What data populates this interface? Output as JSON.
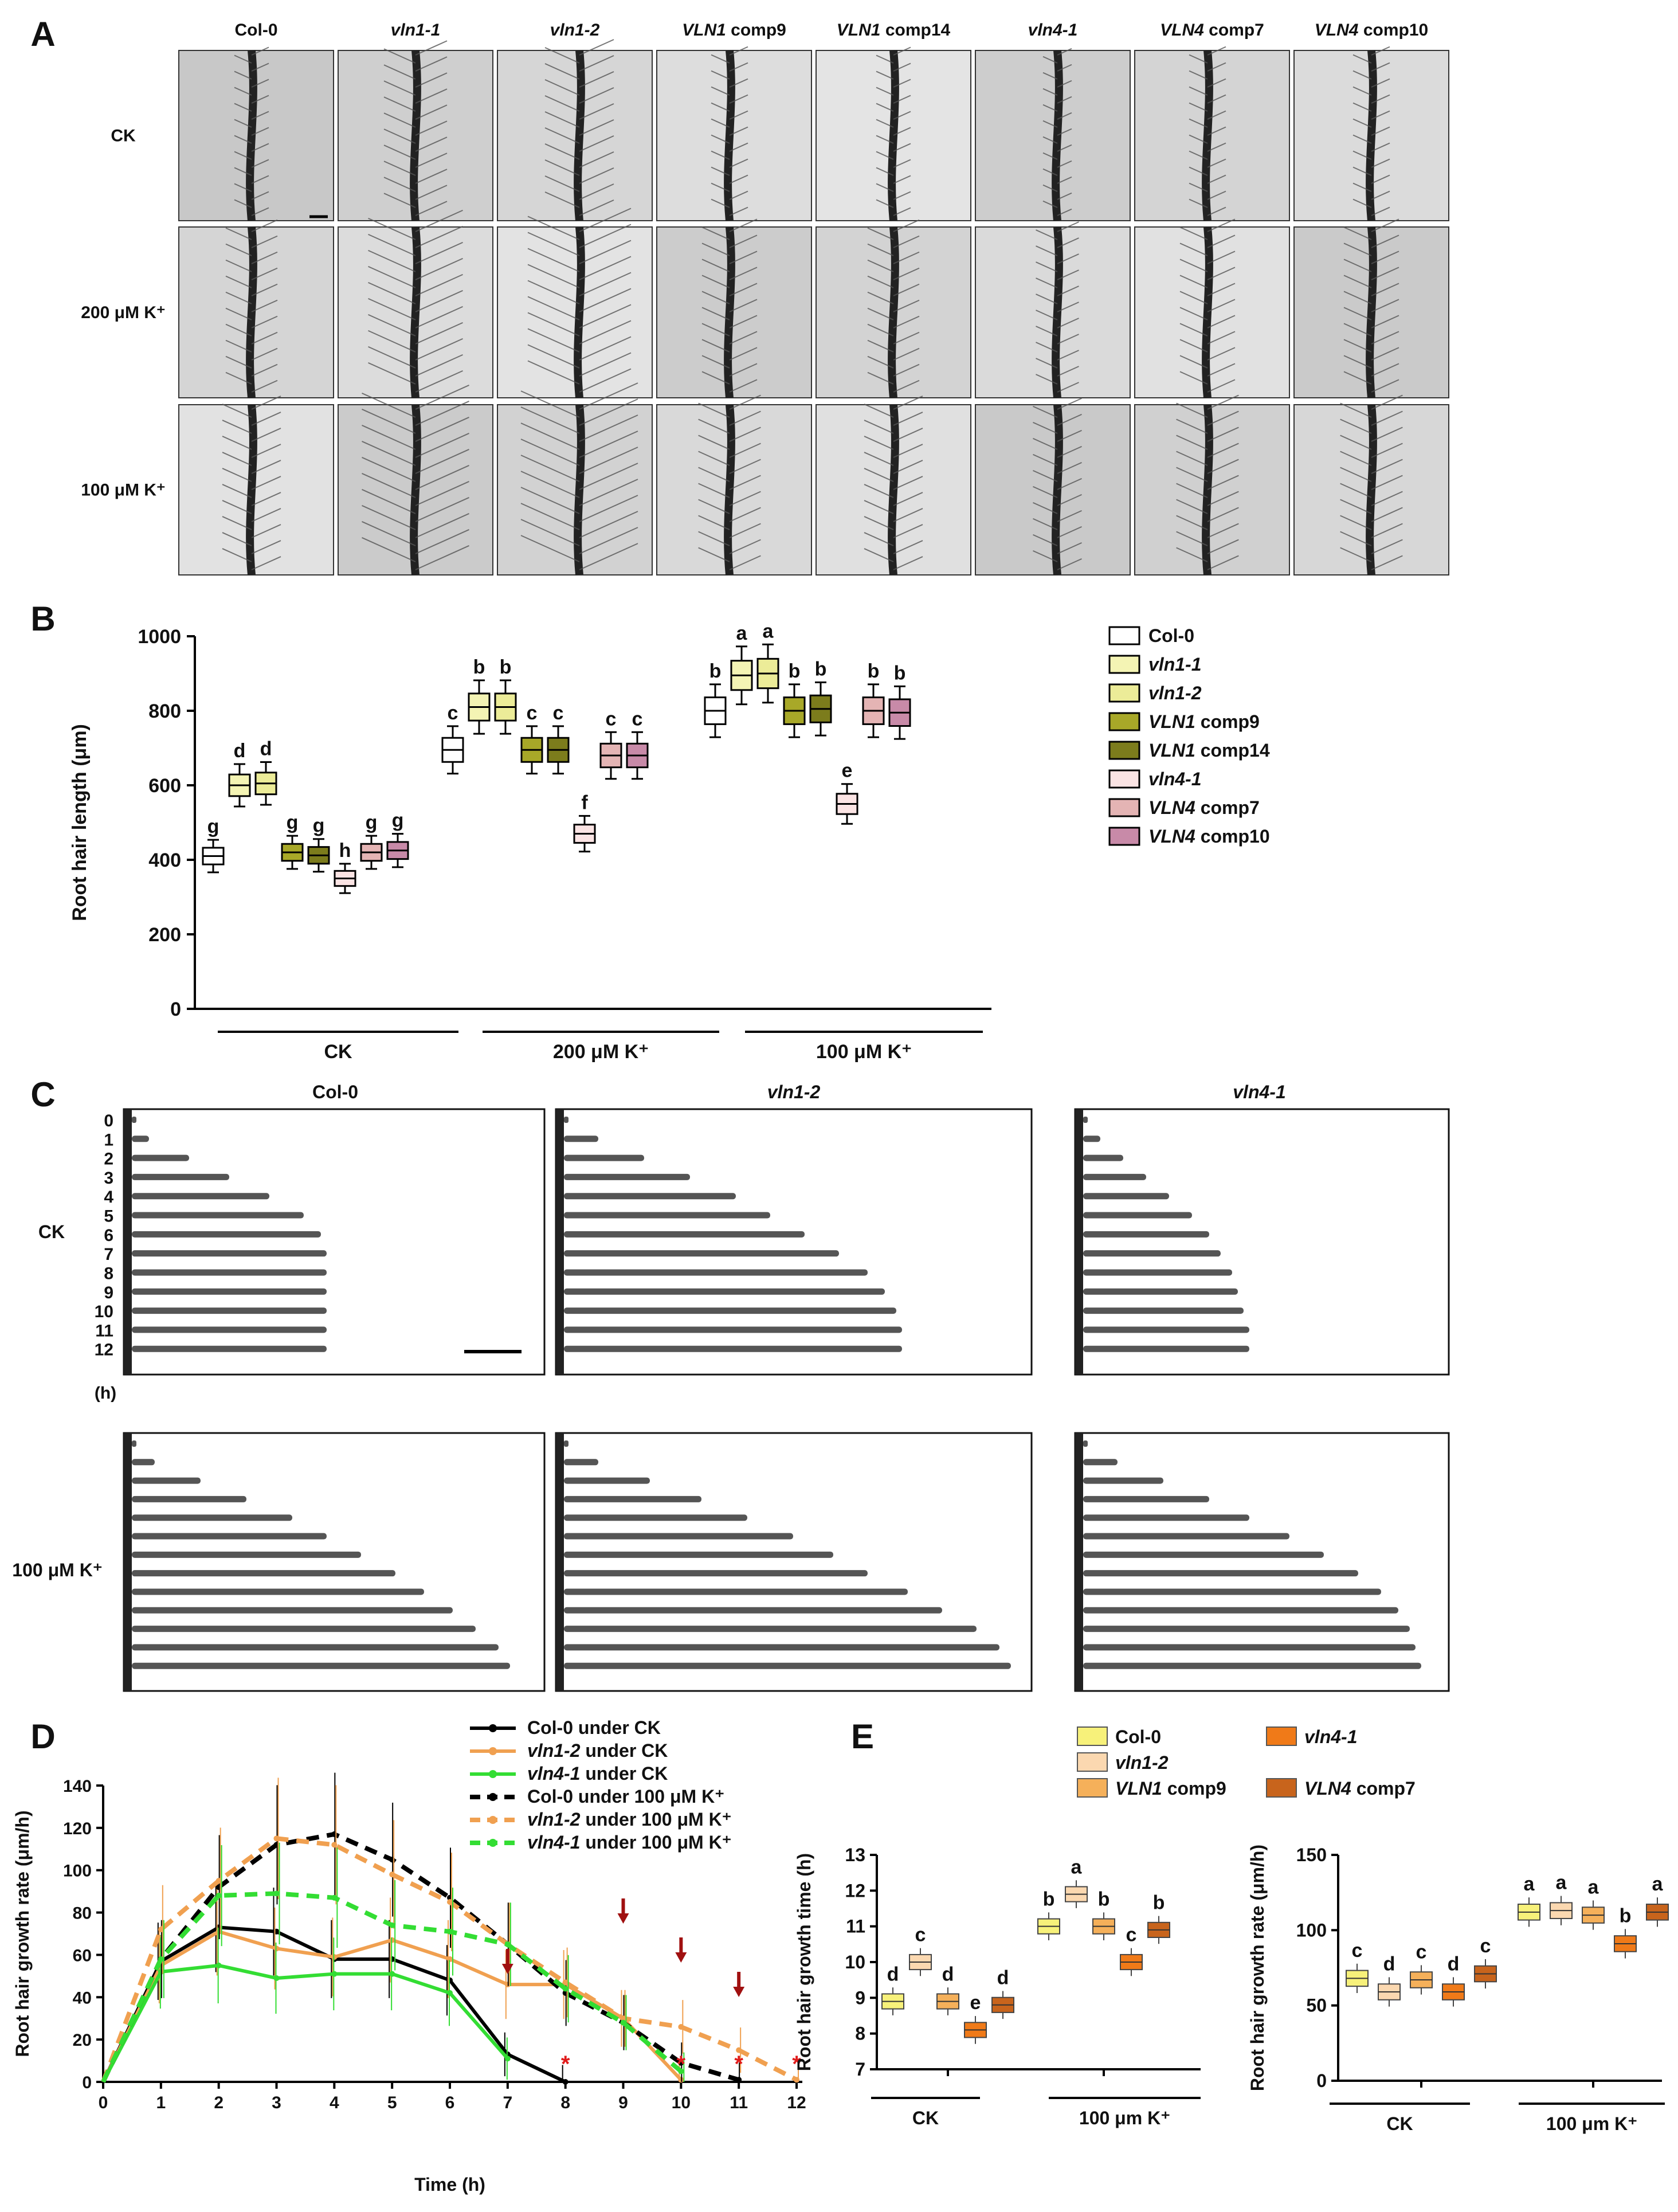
{
  "panel_letters": [
    "A",
    "B",
    "C",
    "D",
    "E"
  ],
  "panelA": {
    "columns": [
      {
        "italic": "",
        "plain": "Col-0"
      },
      {
        "italic": "vln1-1",
        "plain": ""
      },
      {
        "italic": "vln1-2",
        "plain": ""
      },
      {
        "italic": "VLN1",
        "plain": " comp9"
      },
      {
        "italic": "VLN1",
        "plain": " comp14"
      },
      {
        "italic": "vln4-1",
        "plain": ""
      },
      {
        "italic": "VLN4",
        "plain": " comp7"
      },
      {
        "italic": "VLN4",
        "plain": " comp10"
      }
    ],
    "rows": [
      "CK",
      "200 μM K⁺",
      "100 μM K⁺"
    ]
  },
  "panelC": {
    "columns": [
      {
        "italic": "",
        "plain": "Col-0"
      },
      {
        "italic": "vln1-2",
        "plain": ""
      },
      {
        "italic": "vln4-1",
        "plain": ""
      }
    ],
    "rows": [
      "CK",
      "100 μM K⁺"
    ],
    "hours": [
      "0",
      "1",
      "2",
      "3",
      "4",
      "5",
      "6",
      "7",
      "8",
      "9",
      "10",
      "11",
      "12"
    ],
    "hour_unit": "(h)"
  },
  "chart_data": [
    {
      "id": "B",
      "type": "box",
      "ylabel": "Root hair length (μm)",
      "ylim": [
        0,
        1000
      ],
      "yticks": [
        0,
        200,
        400,
        600,
        800,
        1000
      ],
      "groups": [
        "CK",
        "200 μM K⁺",
        "100 μM K⁺"
      ],
      "legend": [
        {
          "italic": "",
          "plain": "Col-0",
          "color": "#ffffff"
        },
        {
          "italic": "vln1-1",
          "plain": "",
          "color": "#f4f4b4"
        },
        {
          "italic": "vln1-2",
          "plain": "",
          "color": "#ecec98"
        },
        {
          "italic": "VLN1",
          "plain": " comp9",
          "color": "#a8a828"
        },
        {
          "italic": "VLN1",
          "plain": " comp14",
          "color": "#7c7c1c"
        },
        {
          "italic": "vln4-1",
          "plain": "",
          "color": "#fbe4e4"
        },
        {
          "italic": "VLN4",
          "plain": " comp7",
          "color": "#e4b4b4"
        },
        {
          "italic": "VLN4",
          "plain": " comp10",
          "color": "#c88aa8"
        }
      ],
      "series_order": [
        "Col-0",
        "vln1-1",
        "vln1-2",
        "VLN1 comp9",
        "VLN1 comp14",
        "vln4-1",
        "VLN4 comp7",
        "VLN4 comp10"
      ],
      "medians": {
        "CK": [
          410,
          600,
          605,
          420,
          412,
          350,
          420,
          425
        ],
        "200 μM K⁺": [
          695,
          810,
          810,
          695,
          695,
          470,
          680,
          680
        ],
        "100 μM K⁺": [
          800,
          895,
          900,
          800,
          805,
          550,
          800,
          795
        ]
      },
      "letters": {
        "CK": [
          "g",
          "d",
          "d",
          "g",
          "g",
          "h",
          "g",
          "g"
        ],
        "200 μM K⁺": [
          "c",
          "b",
          "b",
          "c",
          "c",
          "f",
          "c",
          "c"
        ],
        "100 μM K⁺": [
          "b",
          "a",
          "a",
          "b",
          "b",
          "e",
          "b",
          "b"
        ]
      }
    },
    {
      "id": "D",
      "type": "line",
      "xlabel": "Time (h)",
      "ylabel": "Root hair growth rate (μm/h)",
      "xlim": [
        0,
        12
      ],
      "ylim": [
        0,
        140
      ],
      "xticks": [
        0,
        1,
        2,
        3,
        4,
        5,
        6,
        7,
        8,
        9,
        10,
        11,
        12
      ],
      "yticks": [
        0,
        20,
        40,
        60,
        80,
        100,
        120,
        140
      ],
      "series": [
        {
          "name": "Col-0 under CK",
          "italic": "",
          "suffix": "",
          "color": "#000000",
          "dashed": false,
          "x": [
            0,
            1,
            2,
            3,
            4,
            5,
            6,
            7,
            8
          ],
          "y": [
            0,
            57,
            73,
            71,
            58,
            58,
            48,
            13,
            0
          ]
        },
        {
          "name": "vln1-2 under CK",
          "italic": "vln1-2",
          "suffix": " under CK",
          "color": "#f0a050",
          "dashed": false,
          "x": [
            0,
            1,
            2,
            3,
            4,
            5,
            6,
            7,
            8,
            9,
            10
          ],
          "y": [
            0,
            55,
            71,
            63,
            59,
            67,
            58,
            46,
            46,
            30,
            1
          ]
        },
        {
          "name": "vln4-1 under CK",
          "italic": "vln4-1",
          "suffix": " under CK",
          "color": "#33dd33",
          "dashed": false,
          "x": [
            0,
            1,
            2,
            3,
            4,
            5,
            6,
            7
          ],
          "y": [
            0,
            52,
            55,
            49,
            51,
            51,
            42,
            11
          ]
        },
        {
          "name": "Col-0 under 100 μM K⁺",
          "italic": "",
          "suffix": "",
          "color": "#000000",
          "dashed": true,
          "x": [
            0,
            1,
            2,
            3,
            4,
            5,
            6,
            7,
            8,
            9,
            10,
            11
          ],
          "y": [
            0,
            58,
            92,
            112,
            117,
            105,
            87,
            65,
            42,
            28,
            9,
            1
          ]
        },
        {
          "name": "vln1-2 under 100 μM K⁺",
          "italic": "vln1-2",
          "suffix": " under 100 μM K⁺",
          "color": "#f0a050",
          "dashed": true,
          "x": [
            0,
            1,
            2,
            3,
            4,
            5,
            6,
            7,
            8,
            9,
            10,
            11,
            12
          ],
          "y": [
            0,
            72,
            95,
            115,
            112,
            98,
            85,
            65,
            47,
            30,
            26,
            15,
            1
          ]
        },
        {
          "name": "vln4-1 under 100 μM K⁺",
          "italic": "vln4-1",
          "suffix": " under 100 μM K⁺",
          "color": "#33dd33",
          "dashed": true,
          "x": [
            0,
            1,
            2,
            3,
            4,
            5,
            6,
            7,
            8,
            9,
            10
          ],
          "y": [
            0,
            58,
            88,
            89,
            87,
            74,
            71,
            65,
            44,
            28,
            5
          ]
        }
      ],
      "arrows_at": [
        7,
        9,
        10,
        11
      ],
      "asterisks_at": [
        8,
        10,
        11,
        12
      ],
      "asterisk": "*"
    },
    {
      "id": "E-left",
      "type": "box",
      "ylabel": "Root hair growth time (h)",
      "ylim": [
        7,
        13
      ],
      "yticks": [
        7,
        8,
        9,
        10,
        11,
        12,
        13
      ],
      "groups": [
        "CK",
        "100 μm K⁺"
      ],
      "legend": [
        {
          "italic": "",
          "plain": "Col-0",
          "color": "#f7f17a"
        },
        {
          "italic": "vln1-2",
          "plain": "",
          "color": "#fbd8b0"
        },
        {
          "italic": "VLN1",
          "plain": " comp9",
          "color": "#f5b05a"
        },
        {
          "italic": "vln4-1",
          "plain": "",
          "color": "#f07a18"
        },
        {
          "italic": "VLN4",
          "plain": " comp7",
          "color": "#c8641c"
        }
      ],
      "medians": {
        "CK": [
          8.9,
          10.0,
          8.9,
          8.1,
          8.8
        ],
        "100 μm K⁺": [
          11.0,
          11.9,
          11.0,
          10.0,
          10.9
        ]
      },
      "letters": {
        "CK": [
          "d",
          "c",
          "d",
          "e",
          "d"
        ],
        "100 μm K⁺": [
          "b",
          "a",
          "b",
          "c",
          "b"
        ]
      }
    },
    {
      "id": "E-right",
      "type": "box",
      "ylabel": "Root hair growth rate (μm/h)",
      "ylim": [
        0,
        150
      ],
      "yticks": [
        0,
        50,
        100,
        150
      ],
      "groups": [
        "CK",
        "100 μm K⁺"
      ],
      "medians": {
        "CK": [
          68,
          59,
          67,
          59,
          71
        ],
        "100 μm K⁺": [
          112,
          113,
          110,
          91,
          112
        ]
      },
      "letters": {
        "CK": [
          "c",
          "d",
          "c",
          "d",
          "c"
        ],
        "100 μm K⁺": [
          "a",
          "a",
          "a",
          "b",
          "a"
        ]
      }
    }
  ]
}
